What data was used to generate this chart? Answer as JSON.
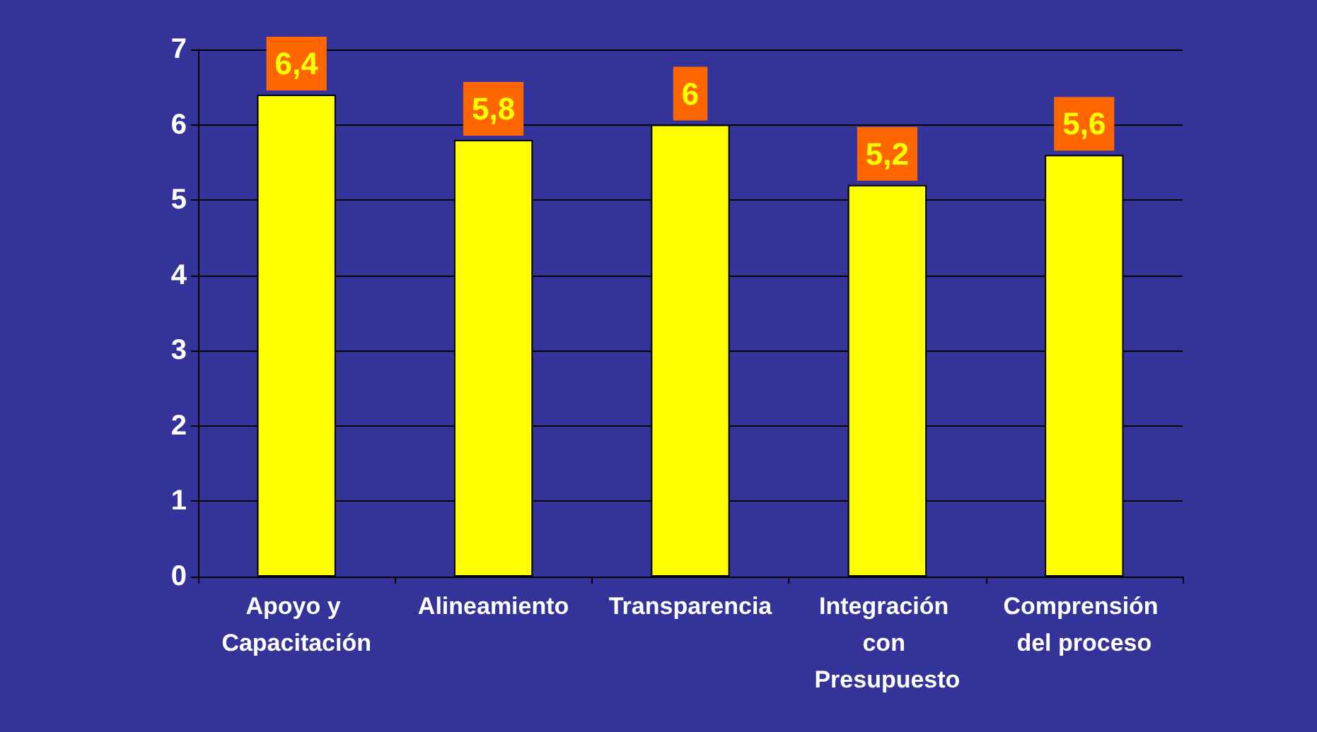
{
  "chart_data": {
    "type": "bar",
    "categories": [
      "Apoyo y Capacitación",
      "Alineamiento",
      "Transparencia",
      "Integración con Presupuesto",
      "Comprensión del proceso"
    ],
    "values": [
      6.4,
      5.8,
      6,
      5.2,
      5.6
    ],
    "value_labels": [
      "6,4",
      "5,8",
      "6",
      "5,2",
      "5,6"
    ],
    "color": "#ffff00",
    "ylim": [
      0,
      7
    ],
    "yticks": [
      0,
      1,
      2,
      3,
      4,
      5,
      6,
      7
    ],
    "grid": "y"
  }
}
